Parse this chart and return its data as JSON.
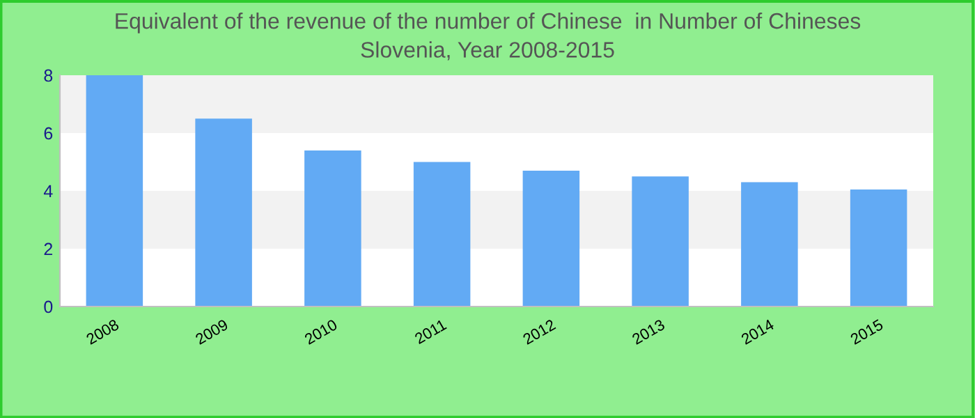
{
  "chart_data": {
    "type": "bar",
    "title": "Equivalent of the revenue of the number of Chinese  in Number of Chineses\nSlovenia, Year 2008-2015",
    "categories": [
      "2008",
      "2009",
      "2010",
      "2011",
      "2012",
      "2013",
      "2014",
      "2015"
    ],
    "values": [
      8.0,
      6.5,
      5.4,
      5.0,
      4.7,
      4.5,
      4.3,
      4.05
    ],
    "color": "#62aaf4",
    "ylim": [
      0,
      8
    ],
    "yticks": [
      0,
      2,
      4,
      6,
      8
    ],
    "bands": [
      {
        "axis": "y",
        "from": 2,
        "to": 4,
        "color": "#f2f2f2"
      },
      {
        "axis": "y",
        "from": 6,
        "to": 8,
        "color": "#f2f2f2"
      }
    ]
  }
}
